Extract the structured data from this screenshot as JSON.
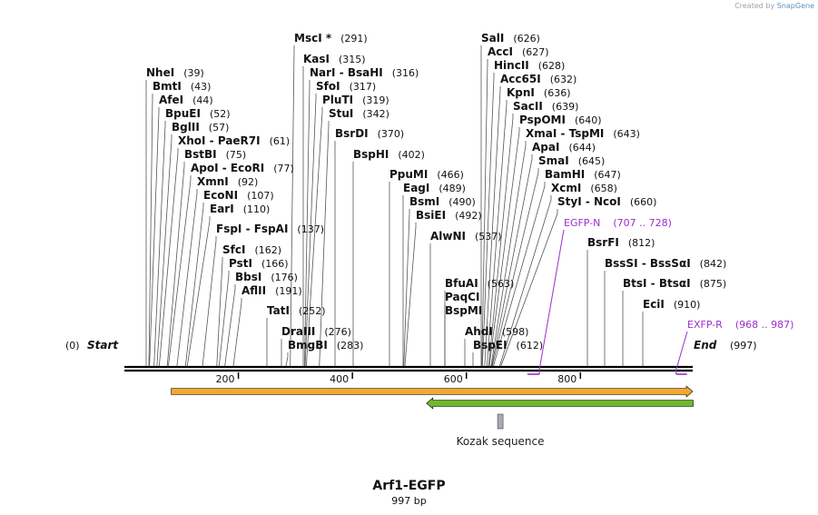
{
  "credit": {
    "prefix": "Created by",
    "brand": "SnapGene"
  },
  "sequence": {
    "name": "Arf1-EGFP",
    "length_label": "997 bp",
    "length": 997
  },
  "ends": {
    "start_label": "Start",
    "start_pos": "(0)",
    "end_label": "End",
    "end_pos": "(997)"
  },
  "axis_ticks": [
    {
      "value": 200,
      "label": "200"
    },
    {
      "value": 400,
      "label": "400"
    },
    {
      "value": 600,
      "label": "600"
    },
    {
      "value": 800,
      "label": "800"
    }
  ],
  "enzymes": [
    {
      "name": "NheI",
      "pos": "(39)",
      "site": 39
    },
    {
      "name": "BmtI",
      "pos": "(43)",
      "site": 43
    },
    {
      "name": "AfeI",
      "pos": "(44)",
      "site": 44
    },
    {
      "name": "BpuEI",
      "pos": "(52)",
      "site": 52
    },
    {
      "name": "BglII",
      "pos": "(57)",
      "site": 57
    },
    {
      "name": "XhoI  - PaeR7I",
      "pos": "(61)",
      "site": 61
    },
    {
      "name": "BstBI",
      "pos": "(75)",
      "site": 75
    },
    {
      "name": "ApoI  - EcoRI",
      "pos": "(77)",
      "site": 77
    },
    {
      "name": "XmnI",
      "pos": "(92)",
      "site": 92
    },
    {
      "name": "EcoNI",
      "pos": "(107)",
      "site": 107
    },
    {
      "name": "EarI",
      "pos": "(110)",
      "site": 110
    },
    {
      "name": "FspI  - FspAI",
      "pos": "(137)",
      "site": 137
    },
    {
      "name": "SfcI",
      "pos": "(162)",
      "site": 162
    },
    {
      "name": "PstI",
      "pos": "(166)",
      "site": 166
    },
    {
      "name": "BbsI",
      "pos": "(176)",
      "site": 176
    },
    {
      "name": "AflII",
      "pos": "(191)",
      "site": 191
    },
    {
      "name": "TatI",
      "pos": "(252)",
      "site": 252
    },
    {
      "name": "DraIII",
      "pos": "(276)",
      "site": 276
    },
    {
      "name": "BmgBI",
      "pos": "(283)",
      "site": 283
    },
    {
      "name": "MscI *",
      "pos": "(291)",
      "site": 291
    },
    {
      "name": "KasI",
      "pos": "(315)",
      "site": 315
    },
    {
      "name": "NarI  - BsaHI",
      "pos": "(316)",
      "site": 316
    },
    {
      "name": "SfoI",
      "pos": "(317)",
      "site": 317
    },
    {
      "name": "PluTI",
      "pos": "(319)",
      "site": 319
    },
    {
      "name": "StuI",
      "pos": "(342)",
      "site": 342
    },
    {
      "name": "BsrDI",
      "pos": "(370)",
      "site": 370
    },
    {
      "name": "BspHI",
      "pos": "(402)",
      "site": 402
    },
    {
      "name": "PpuMI",
      "pos": "(466)",
      "site": 466
    },
    {
      "name": "EagI",
      "pos": "(489)",
      "site": 489
    },
    {
      "name": "BsmI",
      "pos": "(490)",
      "site": 490
    },
    {
      "name": "BsiEI",
      "pos": "(492)",
      "site": 492
    },
    {
      "name": "AlwNI",
      "pos": "(537)",
      "site": 537
    },
    {
      "name": "BfuAI",
      "pos": "(563)",
      "site": 563
    },
    {
      "name": "PaqCI",
      "pos": "",
      "site": 563
    },
    {
      "name": "BspMI",
      "pos": "",
      "site": 563
    },
    {
      "name": "AhdI",
      "pos": "(598)",
      "site": 598
    },
    {
      "name": "BspEI",
      "pos": "(612)",
      "site": 612
    },
    {
      "name": "SalI",
      "pos": "(626)",
      "site": 626
    },
    {
      "name": "AccI",
      "pos": "(627)",
      "site": 627
    },
    {
      "name": "HincII",
      "pos": "(628)",
      "site": 628
    },
    {
      "name": "Acc65I",
      "pos": "(632)",
      "site": 632
    },
    {
      "name": "KpnI",
      "pos": "(636)",
      "site": 636
    },
    {
      "name": "SacII",
      "pos": "(639)",
      "site": 639
    },
    {
      "name": "PspOMI",
      "pos": "(640)",
      "site": 640
    },
    {
      "name": "XmaI  - TspMI",
      "pos": "(643)",
      "site": 643
    },
    {
      "name": "ApaI",
      "pos": "(644)",
      "site": 644
    },
    {
      "name": "SmaI",
      "pos": "(645)",
      "site": 645
    },
    {
      "name": "BamHI",
      "pos": "(647)",
      "site": 647
    },
    {
      "name": "XcmI",
      "pos": "(658)",
      "site": 658
    },
    {
      "name": "StyI  - NcoI",
      "pos": "(660)",
      "site": 660
    },
    {
      "name": "BsrFI",
      "pos": "(812)",
      "site": 812
    },
    {
      "name": "BssSI  - BssSαI",
      "pos": "(842)",
      "site": 842
    },
    {
      "name": "BtsI  - BtsαI",
      "pos": "(875)",
      "site": 875
    },
    {
      "name": "EciI",
      "pos": "(910)",
      "site": 910
    }
  ],
  "primers": [
    {
      "name": "EGFP-N",
      "pos": "(707 .. 728)",
      "start": 707,
      "end": 728
    },
    {
      "name": "EXFP-R",
      "pos": "(968 .. 987)",
      "start": 968,
      "end": 987
    }
  ],
  "features": [
    {
      "name": "",
      "start": 83,
      "end": 997,
      "color": "#f0a830",
      "direction": "forward"
    },
    {
      "name": "",
      "start": 530,
      "end": 997,
      "color": "#6fb82f",
      "direction": "reverse"
    },
    {
      "name": "Kozak sequence",
      "start": 655,
      "end": 664,
      "color": "#a6aab6",
      "direction": "none"
    }
  ],
  "colors": {
    "primer": "#9a2fc9",
    "backbone": "#000000",
    "leader": "#555555"
  }
}
